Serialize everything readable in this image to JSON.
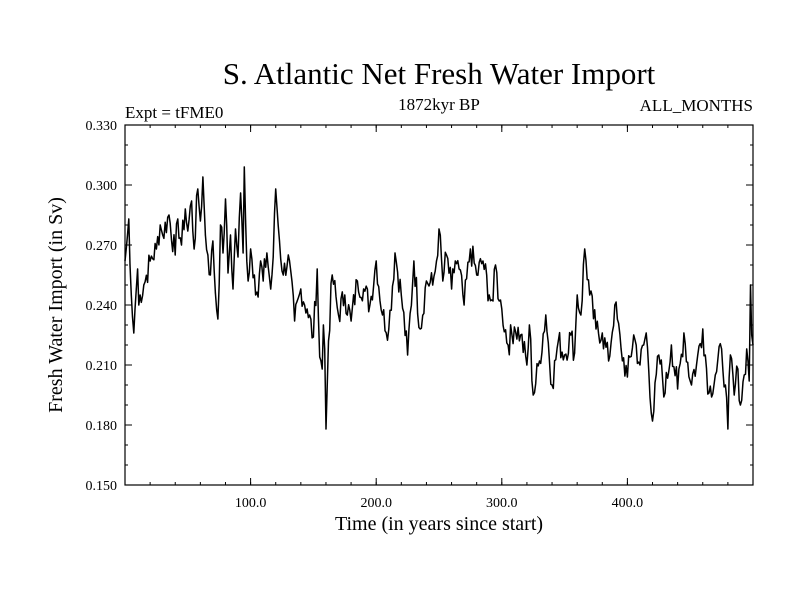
{
  "chart_data": {
    "type": "line",
    "title": "S. Atlantic Net Fresh Water Import",
    "subtitle_left": "Expt = tFME0",
    "subtitle_center": "1872kyr BP",
    "subtitle_right": "ALL_MONTHS",
    "xlabel": "Time (in years since start)",
    "ylabel": "Fresh Water Import (in Sv)",
    "xlim": [
      0,
      500
    ],
    "ylim": [
      0.15,
      0.33
    ],
    "x_ticks": [
      100,
      200,
      300,
      400
    ],
    "x_tick_labels": [
      "100.0",
      "200.0",
      "300.0",
      "400.0"
    ],
    "y_ticks": [
      0.15,
      0.18,
      0.21,
      0.24,
      0.27,
      0.3,
      0.33
    ],
    "y_tick_labels": [
      "0.150",
      "0.180",
      "0.210",
      "0.240",
      "0.270",
      "0.300",
      "0.330"
    ],
    "grid": false,
    "series": [
      {
        "name": "Fresh Water Import",
        "color": "#000000",
        "x": [
          0,
          2,
          3,
          4,
          5,
          6,
          7,
          9,
          10,
          11,
          12,
          15,
          20,
          25,
          28,
          30,
          35,
          40,
          42,
          45,
          48,
          50,
          53,
          55,
          58,
          60,
          62,
          64,
          66,
          68,
          70,
          72,
          74,
          76,
          78,
          80,
          82,
          84,
          86,
          88,
          90,
          92,
          94,
          95,
          96,
          98,
          100,
          103,
          106,
          108,
          110,
          113,
          116,
          118,
          120,
          123,
          126,
          130,
          135,
          140,
          145,
          150,
          153,
          155,
          157,
          158,
          159,
          160,
          162,
          165,
          170,
          175,
          180,
          185,
          190,
          195,
          200,
          205,
          210,
          215,
          220,
          225,
          230,
          235,
          240,
          245,
          248,
          250,
          253,
          256,
          260,
          263,
          266,
          270,
          275,
          280,
          285,
          290,
          293,
          295,
          298,
          300,
          305,
          310,
          315,
          320,
          322,
          325,
          330,
          335,
          340,
          345,
          350,
          355,
          358,
          360,
          363,
          366,
          370,
          375,
          380,
          385,
          390,
          395,
          400,
          405,
          410,
          415,
          420,
          425,
          430,
          435,
          440,
          445,
          450,
          455,
          460,
          465,
          470,
          475,
          478,
          480,
          482,
          485,
          488,
          490,
          493,
          495,
          497,
          498,
          499,
          500
        ],
        "values": [
          0.262,
          0.275,
          0.283,
          0.26,
          0.245,
          0.234,
          0.226,
          0.248,
          0.258,
          0.24,
          0.245,
          0.25,
          0.262,
          0.268,
          0.28,
          0.275,
          0.285,
          0.265,
          0.283,
          0.27,
          0.288,
          0.277,
          0.292,
          0.268,
          0.298,
          0.282,
          0.304,
          0.275,
          0.265,
          0.255,
          0.272,
          0.246,
          0.233,
          0.28,
          0.266,
          0.293,
          0.256,
          0.275,
          0.248,
          0.278,
          0.264,
          0.296,
          0.266,
          0.309,
          0.282,
          0.252,
          0.268,
          0.255,
          0.244,
          0.262,
          0.252,
          0.266,
          0.248,
          0.264,
          0.298,
          0.272,
          0.255,
          0.265,
          0.232,
          0.248,
          0.238,
          0.224,
          0.258,
          0.214,
          0.208,
          0.23,
          0.218,
          0.178,
          0.222,
          0.255,
          0.235,
          0.245,
          0.232,
          0.252,
          0.248,
          0.24,
          0.262,
          0.235,
          0.228,
          0.266,
          0.245,
          0.215,
          0.262,
          0.228,
          0.252,
          0.25,
          0.262,
          0.278,
          0.252,
          0.265,
          0.248,
          0.262,
          0.258,
          0.24,
          0.268,
          0.255,
          0.262,
          0.245,
          0.242,
          0.26,
          0.242,
          0.238,
          0.22,
          0.229,
          0.225,
          0.21,
          0.23,
          0.195,
          0.212,
          0.235,
          0.2,
          0.222,
          0.215,
          0.225,
          0.216,
          0.245,
          0.235,
          0.268,
          0.245,
          0.228,
          0.226,
          0.212,
          0.24,
          0.218,
          0.204,
          0.225,
          0.21,
          0.226,
          0.182,
          0.215,
          0.196,
          0.22,
          0.198,
          0.226,
          0.202,
          0.21,
          0.228,
          0.196,
          0.205,
          0.218,
          0.2,
          0.178,
          0.215,
          0.195,
          0.208,
          0.19,
          0.205,
          0.218,
          0.202,
          0.25,
          0.225,
          0.22
        ]
      }
    ]
  }
}
